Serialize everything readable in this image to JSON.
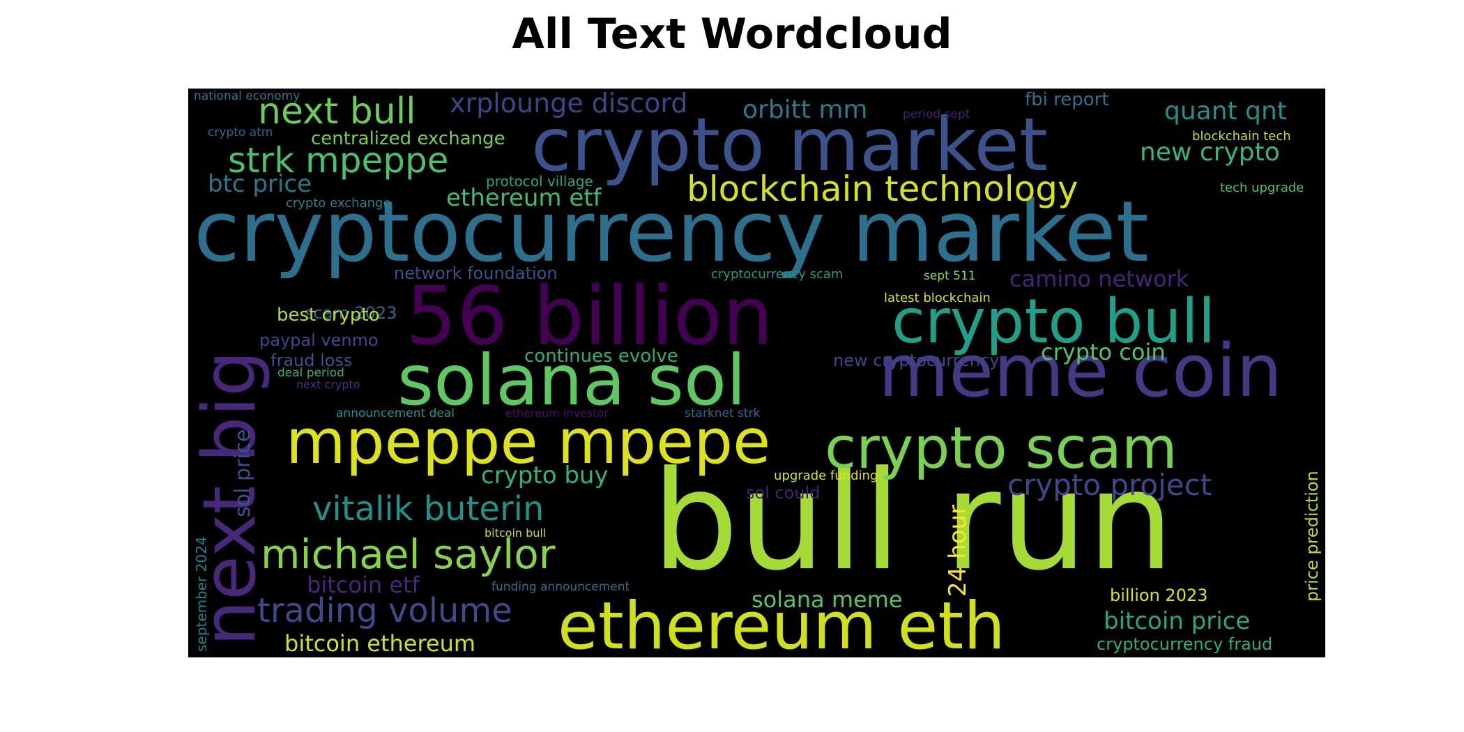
{
  "title": "All Text Wordcloud",
  "words": [
    {
      "text": "cryptocurrency market",
      "color": "#2d708e"
    },
    {
      "text": "crypto market",
      "color": "#3b528b"
    },
    {
      "text": "bull run",
      "color": "#a5db36"
    },
    {
      "text": "56 billion",
      "color": "#440154"
    },
    {
      "text": "solana sol",
      "color": "#5ec962"
    },
    {
      "text": "meme coin",
      "color": "#443983"
    },
    {
      "text": "crypto bull",
      "color": "#1fa088"
    },
    {
      "text": "next big",
      "color": "#482878"
    },
    {
      "text": "mpeppe mpepe",
      "color": "#dde318"
    },
    {
      "text": "crypto scam",
      "color": "#7ad151"
    },
    {
      "text": "ethereum eth",
      "color": "#d0e11c"
    },
    {
      "text": "next bull",
      "color": "#6ccd5a"
    },
    {
      "text": "xrplounge discord",
      "color": "#414487"
    },
    {
      "text": "orbitt mm",
      "color": "#2a788e"
    },
    {
      "text": "quant qnt",
      "color": "#21918c"
    },
    {
      "text": "fbi report",
      "color": "#2c728e"
    },
    {
      "text": "strk mpeppe",
      "color": "#4ac16d"
    },
    {
      "text": "new crypto",
      "color": "#35b779"
    },
    {
      "text": "blockchain technology",
      "color": "#d8e219"
    },
    {
      "text": "btc price",
      "color": "#2a788e"
    },
    {
      "text": "ethereum etf",
      "color": "#3fbc73"
    },
    {
      "text": "centralized exchange",
      "color": "#73d056"
    },
    {
      "text": "protocol village",
      "color": "#22a884"
    },
    {
      "text": "crypto exchange",
      "color": "#26828e"
    },
    {
      "text": "tech upgrade",
      "color": "#4ac16d"
    },
    {
      "text": "blockchain tech",
      "color": "#c2df23"
    },
    {
      "text": "period sept",
      "color": "#481f70"
    },
    {
      "text": "national economy",
      "color": "#2a788e"
    },
    {
      "text": "crypto atm",
      "color": "#31688e"
    },
    {
      "text": "network foundation",
      "color": "#3b528b"
    },
    {
      "text": "cryptocurrency scam",
      "color": "#1f9a8a"
    },
    {
      "text": "sept 511",
      "color": "#8fd744"
    },
    {
      "text": "camino network",
      "color": "#482475"
    },
    {
      "text": "scam 2023",
      "color": "#31688e"
    },
    {
      "text": "latest blockchain",
      "color": "#dde318"
    },
    {
      "text": "best crypto",
      "color": "#b5de2b"
    },
    {
      "text": "paypal venmo",
      "color": "#3e4989"
    },
    {
      "text": "crypto coin",
      "color": "#52c569"
    },
    {
      "text": "fraud loss",
      "color": "#3b528b"
    },
    {
      "text": "continues evolve",
      "color": "#29af7f"
    },
    {
      "text": "new cryptocurrency",
      "color": "#3e4a89"
    },
    {
      "text": "deal period",
      "color": "#2db27d"
    },
    {
      "text": "next crypto",
      "color": "#46327e"
    },
    {
      "text": "sol price",
      "color": "#3b528b"
    },
    {
      "text": "announcement deal",
      "color": "#1f958b"
    },
    {
      "text": "ethereum investor",
      "color": "#471063"
    },
    {
      "text": "starknet strk",
      "color": "#31688e"
    },
    {
      "text": "crypto buy",
      "color": "#2fb47c"
    },
    {
      "text": "crypto project",
      "color": "#3e4989"
    },
    {
      "text": "upgrade funding",
      "color": "#dde318"
    },
    {
      "text": "price prediction",
      "color": "#bade28"
    },
    {
      "text": "vitalik buterin",
      "color": "#20928c"
    },
    {
      "text": "sol could",
      "color": "#482071"
    },
    {
      "text": "24 hour",
      "color": "#fde725"
    },
    {
      "text": "september 2024",
      "color": "#25848e"
    },
    {
      "text": "michael saylor",
      "color": "#86d549"
    },
    {
      "text": "bitcoin bull",
      "color": "#c8e020"
    },
    {
      "text": "bitcoin etf",
      "color": "#482878"
    },
    {
      "text": "funding announcement",
      "color": "#2c728e"
    },
    {
      "text": "solana meme",
      "color": "#54c568"
    },
    {
      "text": "billion 2023",
      "color": "#dde318"
    },
    {
      "text": "trading volume",
      "color": "#3e4a89"
    },
    {
      "text": "bitcoin price",
      "color": "#23a983"
    },
    {
      "text": "bitcoin ethereum",
      "color": "#d2e21b"
    },
    {
      "text": "cryptocurrency fraud",
      "color": "#2ab07f"
    }
  ]
}
